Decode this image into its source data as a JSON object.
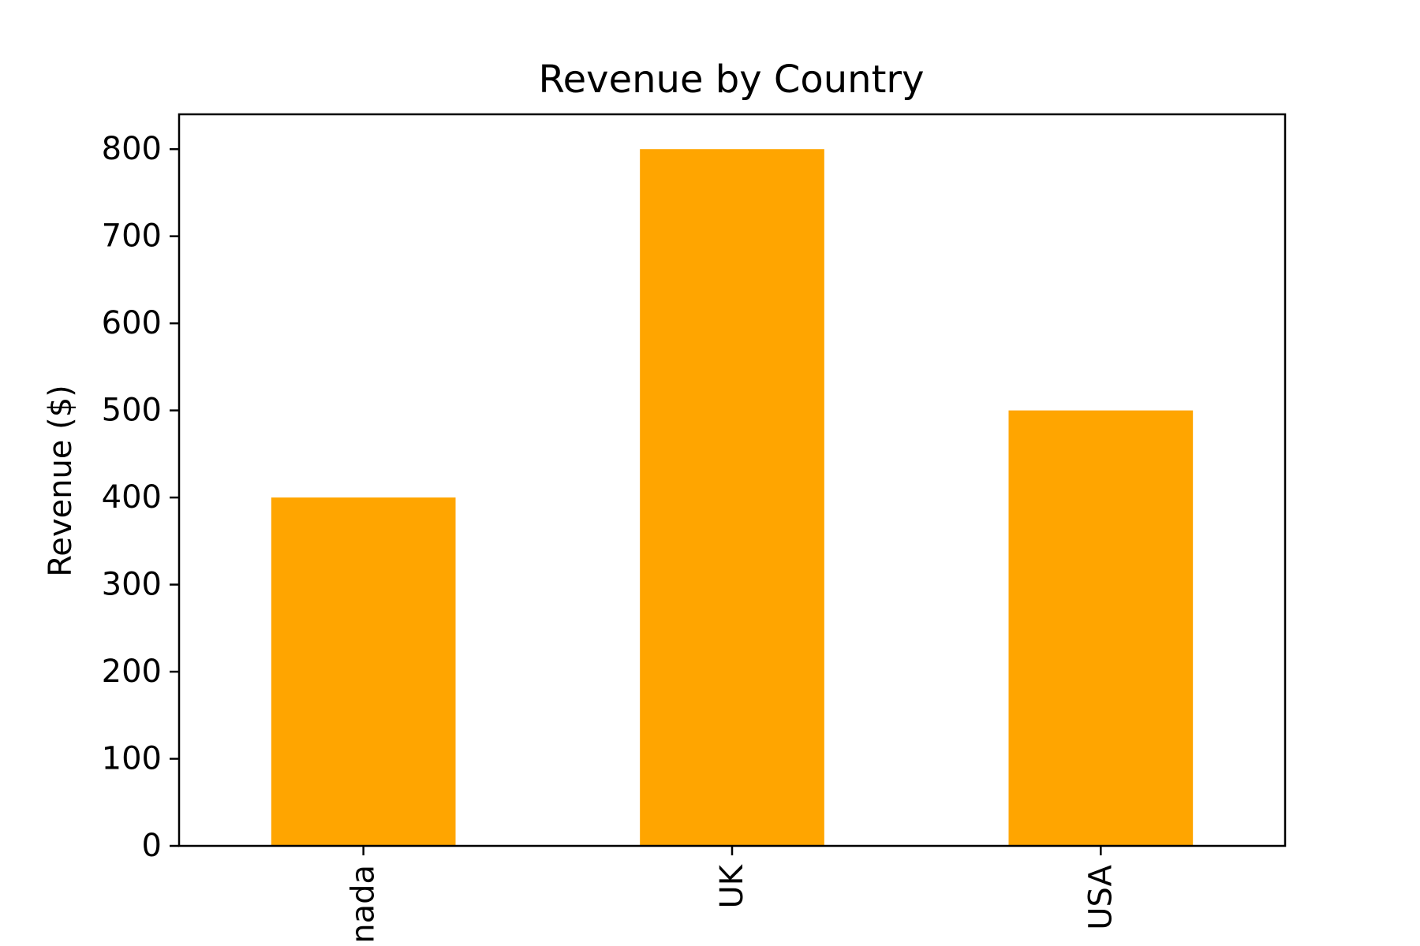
{
  "chart_data": {
    "type": "bar",
    "title": "Revenue by Country",
    "xlabel": "",
    "ylabel": "Revenue ($)",
    "categories": [
      "Canada",
      "UK",
      "USA"
    ],
    "values": [
      400,
      800,
      500
    ],
    "ylim": [
      0,
      840
    ],
    "yticks": [
      0,
      100,
      200,
      300,
      400,
      500,
      600,
      700,
      800
    ],
    "bar_color": "#FFA500",
    "grid": false,
    "xtick_rotation": "vertical"
  }
}
